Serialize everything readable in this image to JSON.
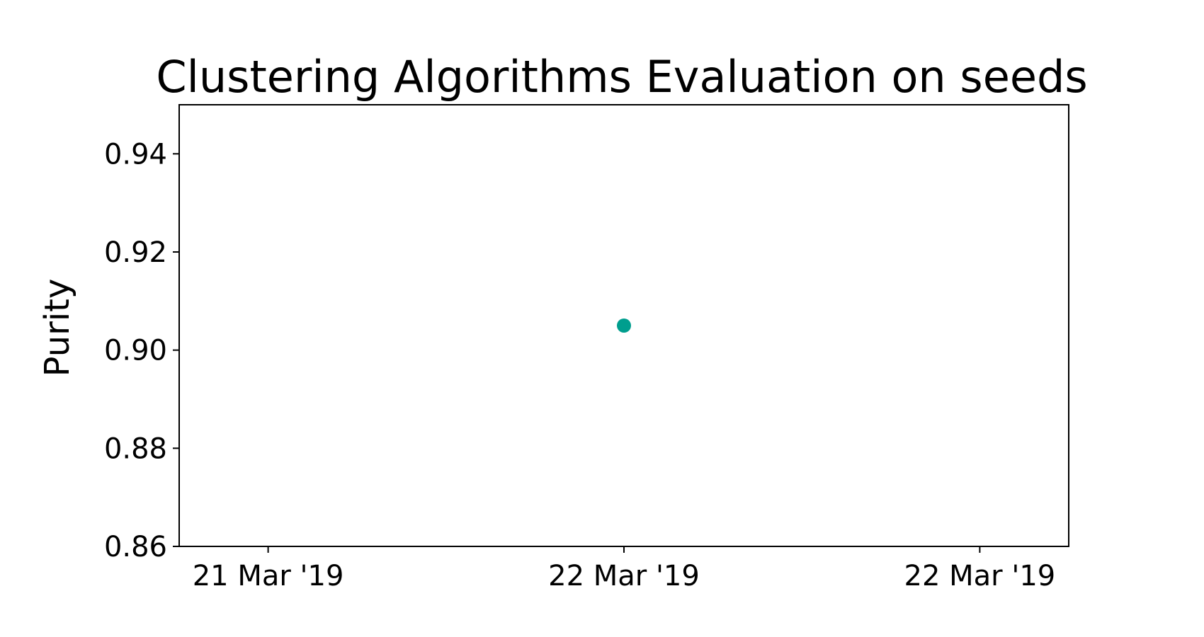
{
  "chart_data": {
    "type": "scatter",
    "title": "Clustering Algorithms Evaluation on seeds",
    "xlabel": "",
    "ylabel": "Purity",
    "x_tick_labels": [
      "21 Mar '19",
      "22 Mar '19",
      "22 Mar '19"
    ],
    "xlim_ticks": [
      -1.25,
      1.25
    ],
    "y_ticks": [
      0.86,
      0.88,
      0.9,
      0.92,
      0.94
    ],
    "ylim": [
      0.86,
      0.95
    ],
    "grid": false,
    "series": [
      {
        "name": "seeds",
        "color": "#009e8e",
        "points": [
          {
            "x_tick_index": 1,
            "y": 0.905
          }
        ]
      }
    ]
  }
}
